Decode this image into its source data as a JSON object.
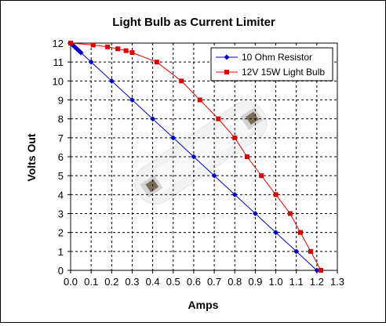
{
  "chart_data": {
    "type": "line",
    "title": "Light Bulb as Current Limiter",
    "xlabel": "Amps",
    "ylabel": "Volts Out",
    "xlim": [
      0,
      1.3
    ],
    "ylim": [
      0,
      12
    ],
    "x_ticks": [
      "0.0",
      "0.1",
      "0.2",
      "0.3",
      "0.4",
      "0.5",
      "0.6",
      "0.7",
      "0.8",
      "0.9",
      "1.0",
      "1.1",
      "1.2",
      "1.3"
    ],
    "y_ticks": [
      "0",
      "1",
      "2",
      "3",
      "4",
      "5",
      "6",
      "7",
      "8",
      "9",
      "10",
      "11",
      "12"
    ],
    "grid": true,
    "legend_position": "top-right",
    "series": [
      {
        "name": "10 Ohm Resistor",
        "color": "#0000cc",
        "marker": "diamond",
        "x": [
          0.0,
          0.01,
          0.02,
          0.03,
          0.04,
          0.05,
          0.1,
          0.2,
          0.3,
          0.4,
          0.5,
          0.6,
          0.7,
          0.8,
          0.9,
          1.0,
          1.1,
          1.2
        ],
        "y": [
          12,
          11.9,
          11.8,
          11.7,
          11.6,
          11.5,
          11,
          10,
          9,
          8,
          7,
          6,
          5,
          4,
          3,
          2,
          1,
          0
        ]
      },
      {
        "name": "12V 15W Light Bulb",
        "color": "#e00000",
        "marker": "square",
        "x": [
          0.0,
          0.11,
          0.18,
          0.23,
          0.27,
          0.3,
          0.42,
          0.54,
          0.63,
          0.72,
          0.8,
          0.86,
          0.93,
          1.0,
          1.07,
          1.12,
          1.17,
          1.22
        ],
        "y": [
          12,
          11.9,
          11.8,
          11.7,
          11.6,
          11.5,
          11,
          10,
          9,
          8,
          7,
          6,
          5,
          4,
          3,
          2,
          1,
          0
        ]
      }
    ]
  }
}
